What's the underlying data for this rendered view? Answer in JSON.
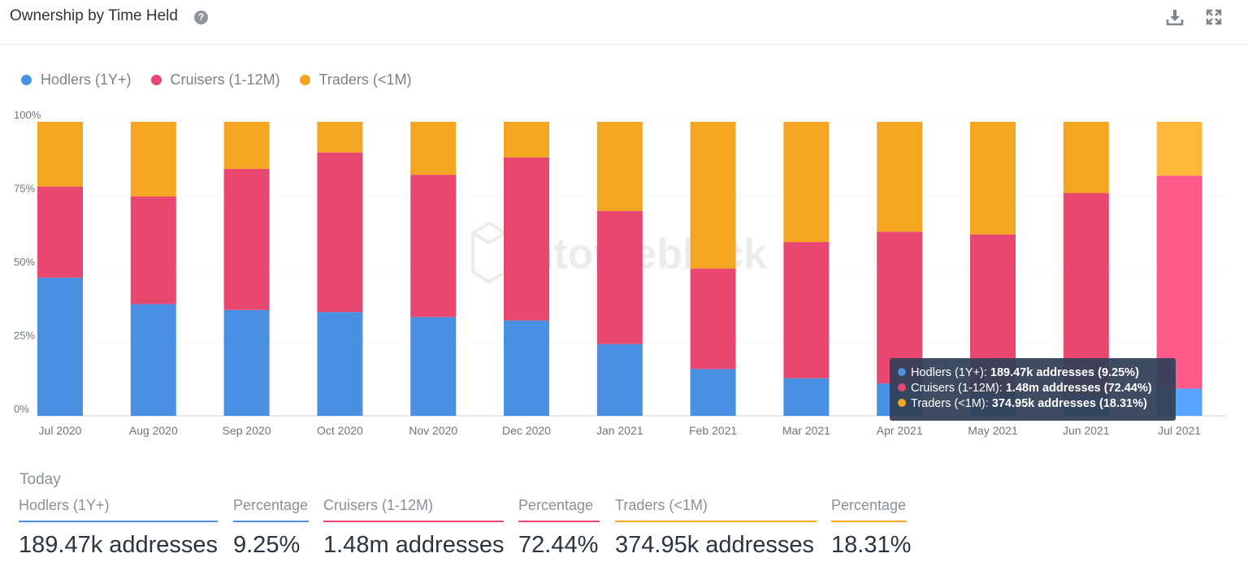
{
  "header": {
    "title": "Ownership by Time Held",
    "help_icon": "question-circle-icon",
    "download_icon": "download-icon",
    "expand_icon": "expand-icon"
  },
  "colors": {
    "hodlers": "#4a90e2",
    "cruisers": "#e8476f",
    "traders": "#f4a623",
    "hodlers_hover": "#5aa6ff",
    "cruisers_hover": "#ff5a8a",
    "traders_hover": "#ffb83a"
  },
  "legend": [
    {
      "label": "Hodlers (1Y+)",
      "color": "#4a90e2"
    },
    {
      "label": "Cruisers (1-12M)",
      "color": "#e8476f"
    },
    {
      "label": "Traders (<1M)",
      "color": "#f4a623"
    }
  ],
  "chart_data": {
    "type": "bar",
    "stacked": true,
    "categories": [
      "Jul 2020",
      "Aug 2020",
      "Sep 2020",
      "Oct 2020",
      "Nov 2020",
      "Dec 2020",
      "Jan 2021",
      "Feb 2021",
      "Mar 2021",
      "Apr 2021",
      "May 2021",
      "Jun 2021",
      "Jul 2021"
    ],
    "y_ticks": [
      "0%",
      "25%",
      "50%",
      "75%",
      "100%"
    ],
    "ylim": [
      0,
      100
    ],
    "grid": true,
    "legend_position": "top-left",
    "series": [
      {
        "name": "Hodlers (1Y+)",
        "color": "#4a90e2",
        "values": [
          47,
          38,
          36,
          35.3,
          33.6,
          32.4,
          24.4,
          15.9,
          12.8,
          11,
          7.5,
          7,
          9.25
        ]
      },
      {
        "name": "Cruisers (1-12M)",
        "color": "#e8476f",
        "values": [
          31,
          36.6,
          48,
          54.3,
          48.4,
          55.5,
          45.3,
          34.2,
          46.3,
          51.6,
          54.2,
          68.8,
          72.44
        ]
      },
      {
        "name": "Traders (<1M)",
        "color": "#f4a623",
        "values": [
          22,
          25.4,
          16,
          10.4,
          18,
          12.1,
          30.3,
          49.9,
          40.9,
          37.4,
          38.3,
          24.2,
          18.31
        ]
      }
    ],
    "highlighted_index": 12
  },
  "tooltip": {
    "rows": [
      {
        "label": "Hodlers (1Y+): ",
        "value": "189.47k addresses (9.25%)",
        "color": "#4a90e2"
      },
      {
        "label": "Cruisers (1-12M): ",
        "value": "1.48m addresses (72.44%)",
        "color": "#e8476f"
      },
      {
        "label": "Traders (<1M): ",
        "value": "374.95k addresses (18.31%)",
        "color": "#f4a623"
      }
    ]
  },
  "today": {
    "label": "Today",
    "stats": [
      {
        "label": "Hodlers (1Y+)",
        "value": "189.47k addresses",
        "color": "#4a90e2"
      },
      {
        "label": "Percentage",
        "value": "9.25%",
        "color": "#4a90e2"
      },
      {
        "label": "Cruisers (1-12M)",
        "value": "1.48m addresses",
        "color": "#e8476f"
      },
      {
        "label": "Percentage",
        "value": "72.44%",
        "color": "#e8476f"
      },
      {
        "label": "Traders (<1M)",
        "value": "374.95k addresses",
        "color": "#f4a623"
      },
      {
        "label": "Percentage",
        "value": "18.31%",
        "color": "#f4a623"
      }
    ]
  }
}
